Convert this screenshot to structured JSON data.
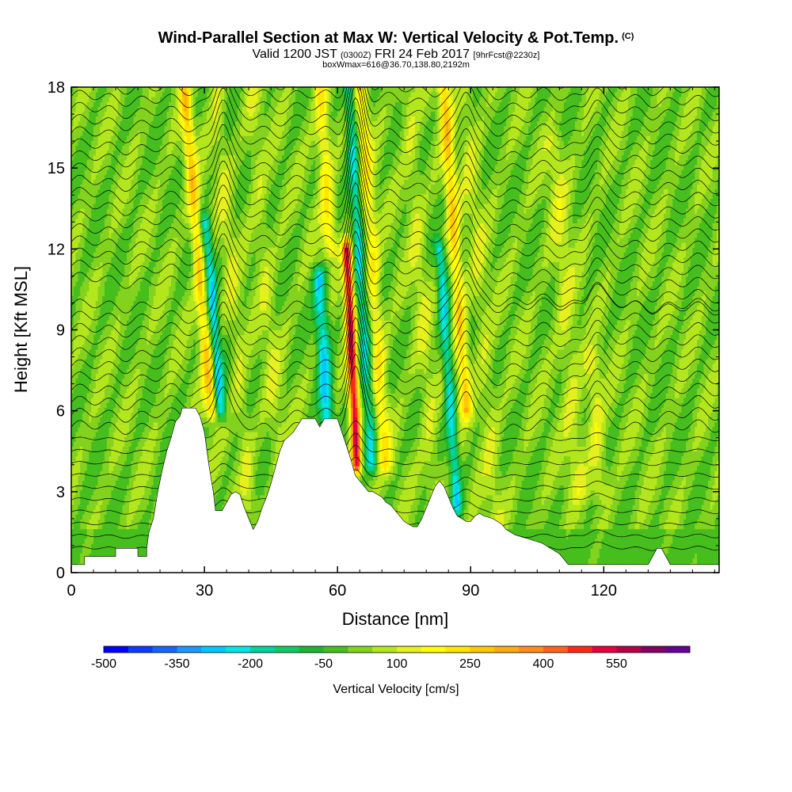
{
  "header": {
    "title": "Wind-Parallel Section at Max W: Vertical Velocity & Pot.Temp.",
    "copyright": "(C)",
    "valid_prefix": "Valid 1200 JST",
    "valid_utc": "(0300Z)",
    "valid_date": "FRI 24 Feb 2017",
    "forecast": "[9hrFcst@2230z]",
    "box_info": "boxWmax=616@36.70,138.80,2192m"
  },
  "chart_data": {
    "type": "heatmap",
    "xlabel": "Distance [nm]",
    "ylabel": "Height [Kft MSL]",
    "xlim": [
      0,
      146
    ],
    "ylim": [
      0,
      18
    ],
    "x_ticks": [
      "0",
      "30",
      "60",
      "90",
      "120"
    ],
    "y_ticks": [
      "0",
      "3",
      "6",
      "9",
      "12",
      "15",
      "18"
    ],
    "x_tick_values": [
      0,
      30,
      60,
      90,
      120
    ],
    "y_tick_values": [
      0,
      3,
      6,
      9,
      12,
      15,
      18
    ],
    "colorbar": {
      "title": "Vertical Velocity [cm/s]",
      "tick_labels": [
        "-500",
        "-350",
        "-200",
        "-50",
        "100",
        "250",
        "400",
        "550"
      ],
      "tick_values": [
        -500,
        -350,
        -200,
        -50,
        100,
        250,
        400,
        550
      ],
      "bins": [
        -500,
        -450,
        -400,
        -350,
        -300,
        -250,
        -200,
        -150,
        -100,
        -50,
        0,
        50,
        100,
        150,
        200,
        250,
        300,
        350,
        400,
        450,
        500,
        550,
        600,
        650
      ],
      "colors": [
        "#0000ff",
        "#0a3cff",
        "#1464ff",
        "#1e96ff",
        "#00c8ff",
        "#00e6e6",
        "#00d2a0",
        "#14c864",
        "#1eb432",
        "#46be1e",
        "#82d21e",
        "#b4e61e",
        "#e6f01e",
        "#ffff00",
        "#ffe600",
        "#ffc800",
        "#ffaa14",
        "#ff8c1e",
        "#ff641e",
        "#ff2814",
        "#e6003c",
        "#b40046",
        "#820064",
        "#640096"
      ]
    },
    "terrain_kft": [
      [
        0,
        0.3
      ],
      [
        3,
        0.3
      ],
      [
        3,
        0.6
      ],
      [
        10,
        0.6
      ],
      [
        10,
        0.9
      ],
      [
        15,
        0.9
      ],
      [
        15,
        0.6
      ],
      [
        17,
        0.6
      ],
      [
        17,
        0.9
      ],
      [
        17.5,
        1.5
      ],
      [
        18.5,
        2.0
      ],
      [
        19.5,
        3.0
      ],
      [
        20.5,
        3.8
      ],
      [
        21.5,
        4.5
      ],
      [
        22.5,
        5.0
      ],
      [
        23.5,
        5.6
      ],
      [
        24.5,
        5.8
      ],
      [
        25,
        6.1
      ],
      [
        28,
        6.1
      ],
      [
        29,
        5.8
      ],
      [
        30,
        5.2
      ],
      [
        31,
        4.0
      ],
      [
        32,
        3.0
      ],
      [
        32.5,
        2.3
      ],
      [
        34,
        2.3
      ],
      [
        35,
        2.6
      ],
      [
        36,
        2.9
      ],
      [
        37,
        3.0
      ],
      [
        38,
        2.9
      ],
      [
        39,
        2.4
      ],
      [
        40,
        2.0
      ],
      [
        41,
        1.6
      ],
      [
        42,
        1.9
      ],
      [
        43,
        2.4
      ],
      [
        44,
        2.8
      ],
      [
        45,
        3.3
      ],
      [
        46,
        3.9
      ],
      [
        47,
        4.5
      ],
      [
        48,
        4.9
      ],
      [
        50,
        5.2
      ],
      [
        52,
        5.7
      ],
      [
        55,
        5.7
      ],
      [
        56,
        5.4
      ],
      [
        57,
        5.7
      ],
      [
        60,
        5.7
      ],
      [
        61,
        5.2
      ],
      [
        62,
        4.7
      ],
      [
        63,
        4.2
      ],
      [
        64,
        3.6
      ],
      [
        66,
        3.2
      ],
      [
        67,
        3.0
      ],
      [
        68,
        3.0
      ],
      [
        69,
        2.9
      ],
      [
        70,
        2.8
      ],
      [
        71,
        2.6
      ],
      [
        72,
        2.5
      ],
      [
        73,
        2.3
      ],
      [
        74,
        2.1
      ],
      [
        75,
        1.9
      ],
      [
        76,
        1.8
      ],
      [
        77,
        1.7
      ],
      [
        78,
        1.7
      ],
      [
        79,
        2.0
      ],
      [
        80,
        2.4
      ],
      [
        81,
        2.8
      ],
      [
        82,
        3.2
      ],
      [
        83,
        3.4
      ],
      [
        84,
        3.2
      ],
      [
        85,
        2.8
      ],
      [
        86,
        2.4
      ],
      [
        87,
        2.1
      ],
      [
        88,
        2.0
      ],
      [
        89,
        1.9
      ],
      [
        90,
        1.9
      ],
      [
        91,
        2.1
      ],
      [
        92,
        2.2
      ],
      [
        93,
        2.1
      ],
      [
        95,
        2.0
      ],
      [
        97,
        1.8
      ],
      [
        98,
        1.6
      ],
      [
        100,
        1.4
      ],
      [
        102,
        1.3
      ],
      [
        104,
        1.2
      ],
      [
        106,
        1.1
      ],
      [
        108,
        0.9
      ],
      [
        110,
        0.7
      ],
      [
        111,
        0.5
      ],
      [
        112,
        0.3
      ],
      [
        130,
        0.3
      ],
      [
        131,
        0.6
      ],
      [
        132,
        0.9
      ],
      [
        133,
        0.9
      ],
      [
        134,
        0.6
      ],
      [
        135,
        0.3
      ],
      [
        146,
        0.3
      ]
    ]
  }
}
